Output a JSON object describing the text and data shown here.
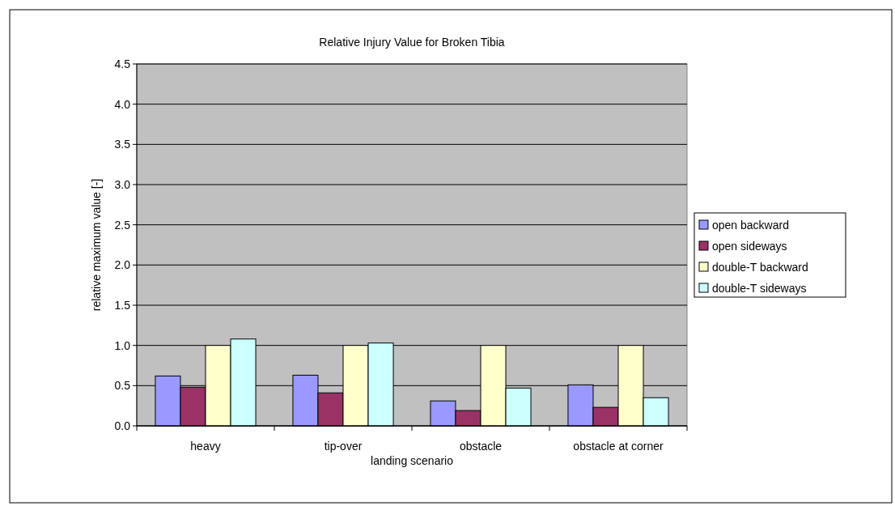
{
  "chart_data": {
    "type": "bar",
    "title": "Relative Injury Value for Broken Tibia",
    "xlabel": "landing scenario",
    "ylabel": "relative maximum value [-]",
    "categories": [
      "heavy",
      "tip-over",
      "obstacle",
      "obstacle at corner"
    ],
    "series": [
      {
        "name": "open backward",
        "color": "#9999ff",
        "values": [
          0.62,
          0.63,
          0.31,
          0.51
        ]
      },
      {
        "name": "open sideways",
        "color": "#993366",
        "values": [
          0.48,
          0.41,
          0.19,
          0.23
        ]
      },
      {
        "name": "double-T backward",
        "color": "#ffffcc",
        "values": [
          1.0,
          1.0,
          1.0,
          1.0
        ]
      },
      {
        "name": "double-T sideways",
        "color": "#ccffff",
        "values": [
          1.08,
          1.03,
          0.47,
          0.35
        ]
      }
    ],
    "ylim": [
      0,
      4.5
    ],
    "yticks": [
      {
        "value": 0,
        "label": "0.0"
      },
      {
        "value": 0.5,
        "label": "0.5"
      },
      {
        "value": 1,
        "label": "1.0"
      },
      {
        "value": 1.5,
        "label": "1.5"
      },
      {
        "value": 2,
        "label": "2.0"
      },
      {
        "value": 2.5,
        "label": "2.5"
      },
      {
        "value": 3,
        "label": "3.0"
      },
      {
        "value": 3.5,
        "label": "3.5"
      },
      {
        "value": 4,
        "label": "4.0"
      },
      {
        "value": 4.5,
        "label": "4.5"
      }
    ],
    "grid": "y",
    "legend": "right"
  }
}
